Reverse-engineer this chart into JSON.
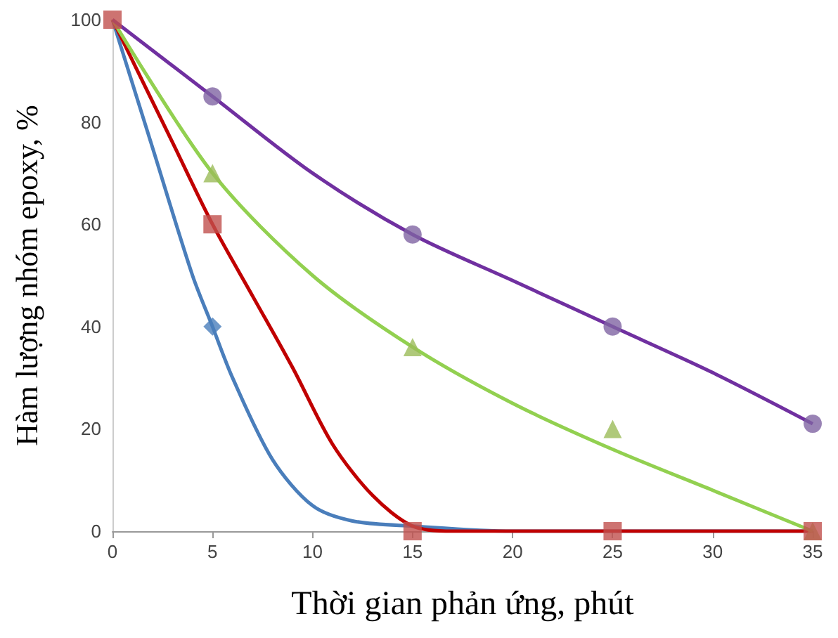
{
  "chart_data": {
    "type": "scatter",
    "xlabel": "Thời gian phản ứng, phút",
    "ylabel": "Hàm lượng nhóm epoxy, %",
    "xlim": [
      0,
      35
    ],
    "xticks": [
      0,
      5,
      10,
      15,
      20,
      25,
      30,
      35
    ],
    "ylim": [
      0,
      100
    ],
    "yticks": [
      0,
      20,
      40,
      60,
      80,
      100
    ],
    "grid": false,
    "series": [
      {
        "type": "line",
        "marker": "none",
        "color": "#4a7ebb",
        "x": [
          0,
          2,
          4,
          5,
          6,
          8,
          10,
          12,
          15,
          20,
          25,
          35
        ],
        "values": [
          100,
          75,
          50,
          40,
          30,
          14,
          5,
          2,
          1,
          0,
          0,
          0
        ]
      },
      {
        "type": "line",
        "marker": "none",
        "color": "#c00000",
        "x": [
          0,
          3,
          5,
          7,
          9,
          11,
          13,
          15,
          17,
          20,
          25,
          35
        ],
        "values": [
          100,
          76,
          60,
          46,
          32,
          17,
          7,
          1,
          0,
          0,
          0,
          0
        ]
      },
      {
        "type": "line",
        "marker": "none",
        "color": "#92d050",
        "x": [
          0,
          5,
          10,
          15,
          20,
          25,
          30,
          35
        ],
        "values": [
          100,
          70,
          50,
          36,
          25,
          16,
          8,
          0
        ]
      },
      {
        "type": "line",
        "marker": "none",
        "color": "#7030a0",
        "x": [
          0,
          5,
          10,
          15,
          20,
          25,
          30,
          35
        ],
        "values": [
          100,
          85,
          70,
          58,
          49,
          40,
          31,
          21
        ]
      },
      {
        "marker": "diamond",
        "color": "#4a7ebb",
        "x": [
          5
        ],
        "values": [
          40
        ]
      },
      {
        "marker": "triangle",
        "color": "#9bbb59",
        "x": [
          5,
          15,
          25,
          35
        ],
        "values": [
          70,
          36,
          20,
          0
        ]
      },
      {
        "marker": "circle",
        "color": "#8064a2",
        "x": [
          5,
          15,
          25,
          35
        ],
        "values": [
          85,
          58,
          40,
          21
        ]
      },
      {
        "marker": "square",
        "color": "#c0504d",
        "x": [
          0,
          5,
          15,
          25,
          35
        ],
        "values": [
          100,
          60,
          0,
          0,
          0
        ]
      }
    ]
  }
}
